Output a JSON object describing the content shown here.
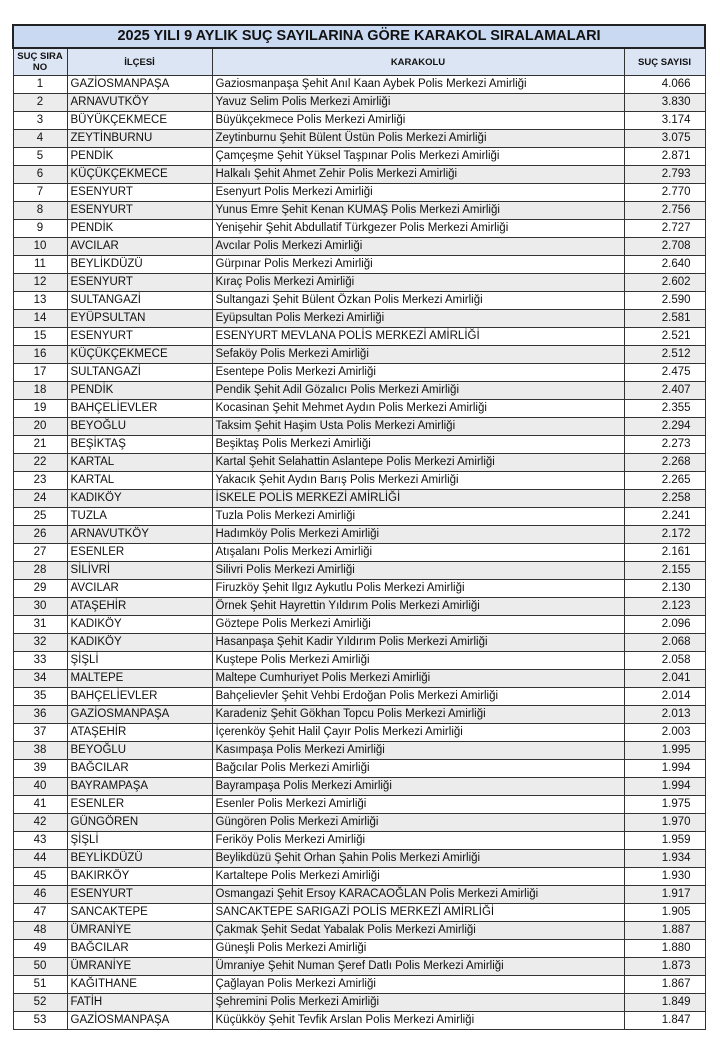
{
  "title": "2025 YILI 9 AYLIK SUÇ SAYILARINA GÖRE KARAKOL SIRALAMALARI",
  "headers": {
    "no": "SUÇ SIRA NO",
    "district": "İLÇESİ",
    "station": "KARAKOLU",
    "count": "SUÇ SAYISI"
  },
  "rows": [
    [
      "1",
      "GAZİOSMANPAŞA",
      "Gaziosmanpaşa Şehit Anıl Kaan Aybek Polis Merkezi Amirliği",
      "4.066"
    ],
    [
      "2",
      "ARNAVUTKÖY",
      "Yavuz Selim Polis Merkezi Amirliği",
      "3.830"
    ],
    [
      "3",
      "BÜYÜKÇEKMECE",
      "Büyükçekmece Polis Merkezi Amirliği",
      "3.174"
    ],
    [
      "4",
      "ZEYTİNBURNU",
      "Zeytinburnu Şehit Bülent Üstün Polis Merkezi Amirliği",
      "3.075"
    ],
    [
      "5",
      "PENDİK",
      "Çamçeşme Şehit Yüksel Taşpınar Polis Merkezi Amirliği",
      "2.871"
    ],
    [
      "6",
      "KÜÇÜKÇEKMECE",
      "Halkalı Şehit Ahmet Zehir Polis Merkezi Amirliği",
      "2.793"
    ],
    [
      "7",
      "ESENYURT",
      "Esenyurt Polis Merkezi Amirliği",
      "2.770"
    ],
    [
      "8",
      "ESENYURT",
      "Yunus Emre Şehit Kenan KUMAŞ Polis Merkezi Amirliği",
      "2.756"
    ],
    [
      "9",
      "PENDİK",
      "Yenişehir Şehit Abdullatif Türkgezer Polis Merkezi Amirliği",
      "2.727"
    ],
    [
      "10",
      "AVCILAR",
      "Avcılar Polis Merkezi Amirliği",
      "2.708"
    ],
    [
      "11",
      "BEYLİKDÜZÜ",
      "Gürpınar Polis Merkezi Amirliği",
      "2.640"
    ],
    [
      "12",
      "ESENYURT",
      "Kıraç Polis Merkezi Amirliği",
      "2.602"
    ],
    [
      "13",
      "SULTANGAZİ",
      "Sultangazi Şehit Bülent Özkan Polis Merkezi Amirliği",
      "2.590"
    ],
    [
      "14",
      "EYÜPSULTAN",
      "Eyüpsultan Polis Merkezi Amirliği",
      "2.581"
    ],
    [
      "15",
      "ESENYURT",
      "ESENYURT MEVLANA POLİS MERKEZİ AMİRLİĞİ",
      "2.521"
    ],
    [
      "16",
      "KÜÇÜKÇEKMECE",
      "Sefaköy Polis Merkezi Amirliği",
      "2.512"
    ],
    [
      "17",
      "SULTANGAZİ",
      "Esentepe Polis Merkezi Amirliği",
      "2.475"
    ],
    [
      "18",
      "PENDİK",
      "Pendik Şehit Adil Gözalıcı Polis Merkezi Amirliği",
      "2.407"
    ],
    [
      "19",
      "BAHÇELİEVLER",
      "Kocasinan Şehit Mehmet Aydın Polis Merkezi Amirliği",
      "2.355"
    ],
    [
      "20",
      "BEYOĞLU",
      "Taksim Şehit Haşim Usta Polis Merkezi Amirliği",
      "2.294"
    ],
    [
      "21",
      "BEŞİKTAŞ",
      "Beşiktaş Polis Merkezi Amirliği",
      "2.273"
    ],
    [
      "22",
      "KARTAL",
      "Kartal Şehit Selahattin Aslantepe Polis Merkezi Amirliği",
      "2.268"
    ],
    [
      "23",
      "KARTAL",
      "Yakacık Şehit Aydın Barış Polis Merkezi Amirliği",
      "2.265"
    ],
    [
      "24",
      "KADIKÖY",
      "İSKELE POLİS MERKEZİ AMİRLİĞİ",
      "2.258"
    ],
    [
      "25",
      "TUZLA",
      "Tuzla Polis Merkezi Amirliği",
      "2.241"
    ],
    [
      "26",
      "ARNAVUTKÖY",
      "Hadımköy Polis Merkezi Amirliği",
      "2.172"
    ],
    [
      "27",
      "ESENLER",
      "Atışalanı Polis Merkezi Amirliği",
      "2.161"
    ],
    [
      "28",
      "SİLİVRİ",
      "Silivri Polis Merkezi Amirliği",
      "2.155"
    ],
    [
      "29",
      "AVCILAR",
      "Firuzköy Şehit Ilgız Aykutlu Polis Merkezi Amirliği",
      "2.130"
    ],
    [
      "30",
      "ATAŞEHİR",
      "Örnek Şehit Hayrettin Yıldırım Polis Merkezi Amirliği",
      "2.123"
    ],
    [
      "31",
      "KADIKÖY",
      "Göztepe Polis Merkezi Amirliği",
      "2.096"
    ],
    [
      "32",
      "KADIKÖY",
      "Hasanpaşa Şehit Kadir Yıldırım Polis Merkezi Amirliği",
      "2.068"
    ],
    [
      "33",
      "ŞİŞLİ",
      "Kuştepe Polis Merkezi Amirliği",
      "2.058"
    ],
    [
      "34",
      "MALTEPE",
      "Maltepe Cumhuriyet Polis Merkezi Amirliği",
      "2.041"
    ],
    [
      "35",
      "BAHÇELİEVLER",
      "Bahçelievler Şehit Vehbi Erdoğan Polis Merkezi Amirliği",
      "2.014"
    ],
    [
      "36",
      "GAZİOSMANPAŞA",
      "Karadeniz Şehit Gökhan Topcu Polis Merkezi Amirliği",
      "2.013"
    ],
    [
      "37",
      "ATAŞEHİR",
      "İçerenköy Şehit Halil Çayır Polis Merkezi Amirliği",
      "2.003"
    ],
    [
      "38",
      "BEYOĞLU",
      "Kasımpaşa Polis Merkezi Amirliği",
      "1.995"
    ],
    [
      "39",
      "BAĞCILAR",
      "Bağcılar Polis Merkezi Amirliği",
      "1.994"
    ],
    [
      "40",
      "BAYRAMPAŞA",
      "Bayrampaşa Polis Merkezi Amirliği",
      "1.994"
    ],
    [
      "41",
      "ESENLER",
      "Esenler Polis Merkezi Amirliği",
      "1.975"
    ],
    [
      "42",
      "GÜNGÖREN",
      "Güngören Polis Merkezi Amirliği",
      "1.970"
    ],
    [
      "43",
      "ŞİŞLİ",
      "Feriköy Polis Merkezi Amirliği",
      "1.959"
    ],
    [
      "44",
      "BEYLİKDÜZÜ",
      "Beylikdüzü Şehit Orhan Şahin Polis Merkezi Amirliği",
      "1.934"
    ],
    [
      "45",
      "BAKIRKÖY",
      "Kartaltepe Polis Merkezi Amirliği",
      "1.930"
    ],
    [
      "46",
      "ESENYURT",
      "Osmangazi Şehit Ersoy KARACAOĞLAN Polis Merkezi Amirliği",
      "1.917"
    ],
    [
      "47",
      "SANCAKTEPE",
      "SANCAKTEPE SARIGAZİ POLİS MERKEZİ AMİRLİĞİ",
      "1.905"
    ],
    [
      "48",
      "ÜMRANİYE",
      "Çakmak Şehit Sedat Yabalak Polis Merkezi Amirliği",
      "1.887"
    ],
    [
      "49",
      "BAĞCILAR",
      "Güneşli Polis Merkezi Amirliği",
      "1.880"
    ],
    [
      "50",
      "ÜMRANİYE",
      "Ümraniye Şehit Numan Şeref Datlı Polis Merkezi Amirliği",
      "1.873"
    ],
    [
      "51",
      "KAĞITHANE",
      "Çağlayan Polis Merkezi Amirliği",
      "1.867"
    ],
    [
      "52",
      "FATİH",
      "Şehremini Polis Merkezi Amirliği",
      "1.849"
    ],
    [
      "53",
      "GAZİOSMANPAŞA",
      "Küçükköy Şehit Tevfik Arslan Polis Merkezi Amirliği",
      "1.847"
    ]
  ]
}
